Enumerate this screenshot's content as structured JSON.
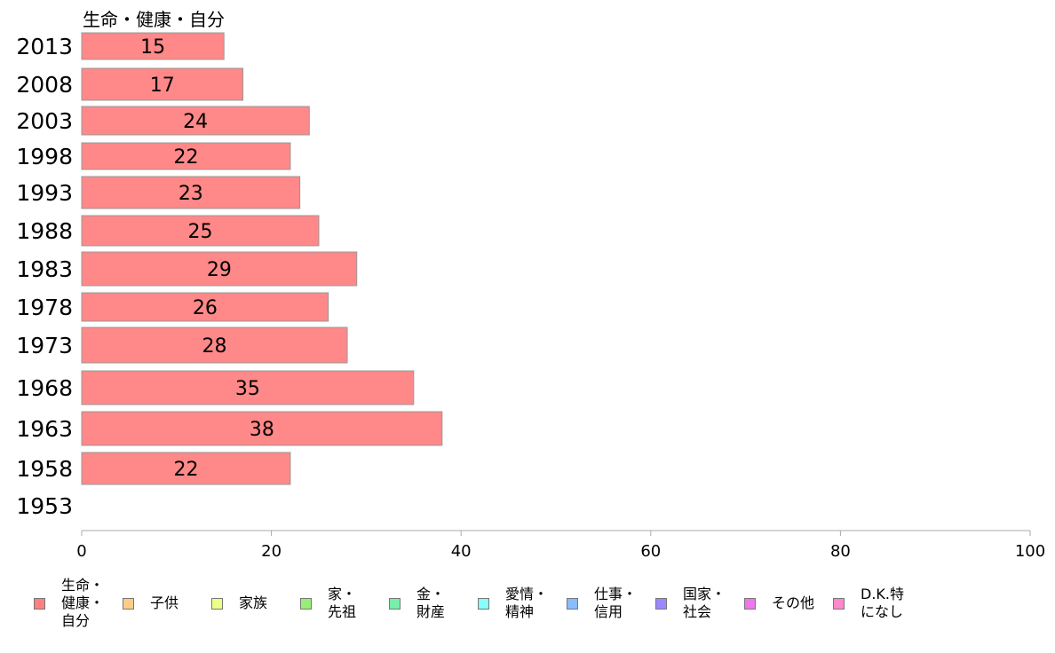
{
  "chart_data": {
    "type": "bar",
    "orientation": "horizontal",
    "title": "生命・健康・自分",
    "categories": [
      "2013",
      "2008",
      "2003",
      "1998",
      "1993",
      "1988",
      "1983",
      "1978",
      "1973",
      "1968",
      "1963",
      "1958",
      "1953"
    ],
    "values": [
      15,
      17,
      24,
      22,
      23,
      25,
      29,
      26,
      28,
      35,
      38,
      22,
      null
    ],
    "bar_color": "#ff8888",
    "xlim": [
      0,
      100
    ],
    "xticks": [
      0,
      20,
      40,
      60,
      80,
      100
    ],
    "legend": [
      {
        "label": "生命・\n健康・\n自分",
        "color": "#ff8080"
      },
      {
        "label": "子供",
        "color": "#ffcc88"
      },
      {
        "label": "家族",
        "color": "#eeff88"
      },
      {
        "label": "家・\n先祖",
        "color": "#99ee77"
      },
      {
        "label": "金・\n財産",
        "color": "#77eeaa"
      },
      {
        "label": "愛情・\n精神",
        "color": "#88ffff"
      },
      {
        "label": "仕事・\n信用",
        "color": "#88bbff"
      },
      {
        "label": "国家・\n社会",
        "color": "#9988ff"
      },
      {
        "label": "その他",
        "color": "#ee77ee"
      },
      {
        "label": "D.K.特\nになし",
        "color": "#ff88cc"
      }
    ]
  }
}
